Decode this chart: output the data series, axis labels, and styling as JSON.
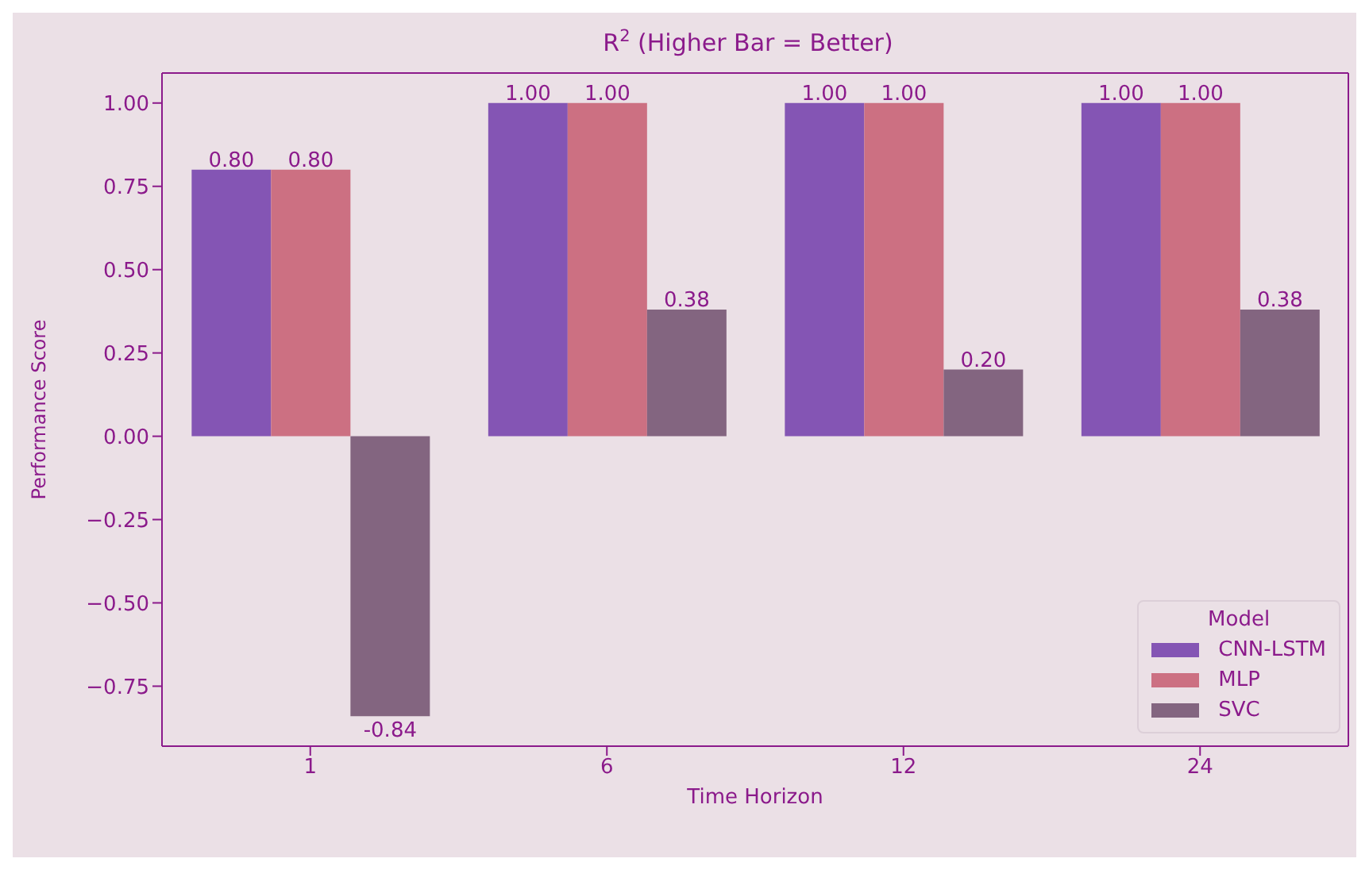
{
  "chart_data": {
    "type": "bar",
    "title": "R$^{2}$ (Higher Bar = Better)",
    "xlabel": "Time Horizon",
    "ylabel": "Performance Score",
    "legend_title": "Model",
    "categories": [
      "1",
      "6",
      "12",
      "24"
    ],
    "series": [
      {
        "name": "CNN-LSTM",
        "color": "#8455b4",
        "values": [
          0.8,
          1.0,
          1.0,
          1.0
        ],
        "value_labels": [
          "0.80",
          "1.00",
          "1.00",
          "1.00"
        ]
      },
      {
        "name": "MLP",
        "color": "#cc7082",
        "values": [
          0.8,
          1.0,
          1.0,
          1.0
        ],
        "value_labels": [
          "0.80",
          "1.00",
          "1.00",
          "1.00"
        ]
      },
      {
        "name": "SVC",
        "color": "#836580",
        "values": [
          -0.84,
          0.38,
          0.2,
          0.38
        ],
        "value_labels": [
          "-0.84",
          "0.38",
          "0.20",
          "0.38"
        ]
      }
    ],
    "ylim": [
      -0.93,
      1.09
    ],
    "yticks": [
      {
        "value": -0.75,
        "label": "−0.75"
      },
      {
        "value": -0.5,
        "label": "−0.50"
      },
      {
        "value": -0.25,
        "label": "−0.25"
      },
      {
        "value": 0,
        "label": "0.00"
      },
      {
        "value": 0.25,
        "label": "0.25"
      },
      {
        "value": 0.5,
        "label": "0.50"
      },
      {
        "value": 0.75,
        "label": "0.75"
      },
      {
        "value": 1,
        "label": "1.00"
      }
    ],
    "grid": false,
    "legend": "bottom right"
  }
}
